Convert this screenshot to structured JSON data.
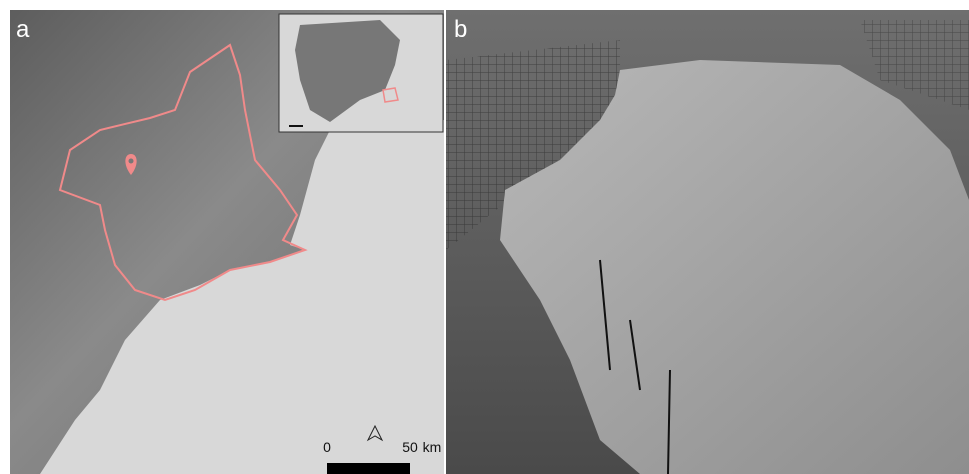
{
  "panels": [
    {
      "label": "a"
    },
    {
      "label": "b"
    }
  ],
  "scale_bar": {
    "start": "0",
    "end": "50",
    "unit": "km"
  }
}
